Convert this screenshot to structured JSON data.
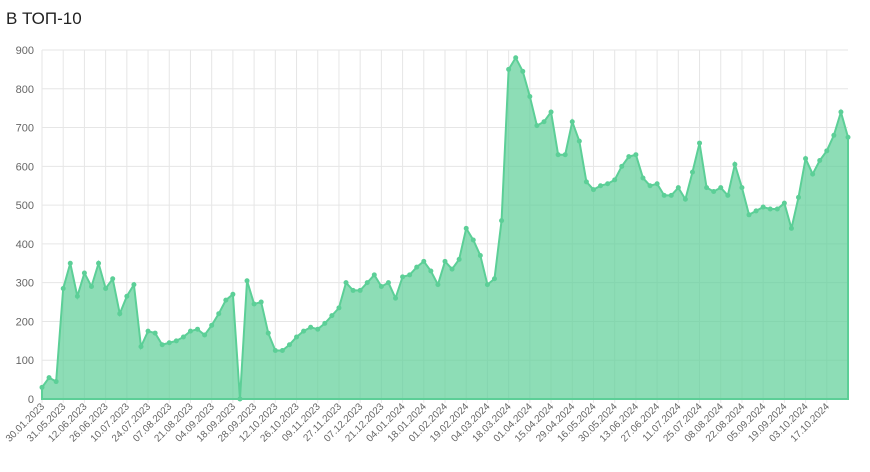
{
  "chart_data": {
    "type": "area",
    "title": "В ТОП-10",
    "categories": [
      "30.01.2023",
      null,
      null,
      "31.05.2023",
      null,
      null,
      "12.06.2023",
      null,
      null,
      "26.06.2023",
      null,
      null,
      "10.07.2023",
      null,
      null,
      "24.07.2023",
      null,
      null,
      "07.08.2023",
      null,
      null,
      "21.08.2023",
      null,
      null,
      "04.09.2023",
      null,
      null,
      "18.09.2023",
      null,
      null,
      "28.09.2023",
      null,
      null,
      "12.10.2023",
      null,
      null,
      "26.10.2023",
      null,
      null,
      "09.11.2023",
      null,
      null,
      "27.11.2023",
      null,
      null,
      "07.12.2023",
      null,
      null,
      "21.12.2023",
      null,
      null,
      "04.01.2024",
      null,
      null,
      "18.01.2024",
      null,
      null,
      "01.02.2024",
      null,
      null,
      "19.02.2024",
      null,
      null,
      "04.03.2024",
      null,
      null,
      "18.03.2024",
      null,
      null,
      "01.04.2024",
      null,
      null,
      "15.04.2024",
      null,
      null,
      "29.04.2024",
      null,
      null,
      "16.05.2024",
      null,
      null,
      "30.05.2024",
      null,
      null,
      "13.06.2024",
      null,
      null,
      "27.06.2024",
      null,
      null,
      "11.07.2024",
      null,
      null,
      "25.07.2024",
      null,
      null,
      "08.08.2024",
      null,
      null,
      "22.08.2024",
      null,
      null,
      "05.09.2024",
      null,
      null,
      "19.09.2024",
      null,
      null,
      "03.10.2024",
      null,
      null,
      "17.10.2024",
      null,
      null,
      null
    ],
    "values": [
      30,
      55,
      45,
      285,
      350,
      265,
      325,
      290,
      350,
      285,
      310,
      220,
      265,
      295,
      135,
      175,
      170,
      140,
      145,
      150,
      160,
      175,
      180,
      165,
      190,
      220,
      255,
      270,
      0,
      305,
      245,
      250,
      170,
      125,
      125,
      140,
      160,
      175,
      185,
      180,
      195,
      215,
      235,
      300,
      280,
      280,
      300,
      320,
      290,
      300,
      260,
      315,
      320,
      340,
      355,
      330,
      295,
      355,
      335,
      360,
      440,
      410,
      370,
      295,
      310,
      460,
      850,
      880,
      845,
      780,
      705,
      715,
      740,
      630,
      630,
      715,
      665,
      560,
      540,
      550,
      555,
      565,
      600,
      625,
      630,
      570,
      550,
      555,
      525,
      525,
      545,
      515,
      585,
      660,
      545,
      535,
      545,
      525,
      605,
      545,
      475,
      485,
      495,
      490,
      490,
      505,
      440,
      520,
      620,
      580,
      615,
      640,
      680,
      740,
      675
    ],
    "color": "#5ccf97",
    "ylim": [
      0,
      900
    ],
    "yticks": [
      0,
      100,
      200,
      300,
      400,
      500,
      600,
      700,
      800,
      900
    ],
    "grid": true
  }
}
